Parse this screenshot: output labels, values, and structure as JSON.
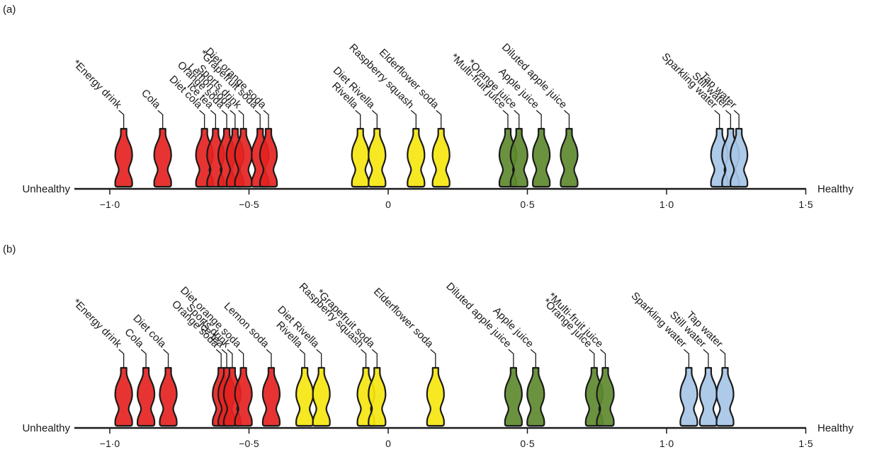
{
  "colors": {
    "red": "#e52321",
    "yellow": "#f5e60f",
    "green": "#5e8a2f",
    "blue": "#a6c5e7",
    "outline": "#1a1a1a"
  },
  "chart_data": [
    {
      "type": "scatter",
      "panel_label": "(a)",
      "left_label": "Unhealthy",
      "right_label": "Healthy",
      "xlim": [
        -1.2,
        1.5
      ],
      "x_ticks": [
        -1.0,
        -0.5,
        0,
        0.5,
        1.0,
        1.5
      ],
      "x_tick_labels": [
        "−1·0",
        "−0·5",
        "0",
        "0·5",
        "1·0",
        "1·5"
      ],
      "points": [
        {
          "label": "*Energy drink",
          "x": -0.95,
          "color": "red"
        },
        {
          "label": "Cola",
          "x": -0.81,
          "color": "red"
        },
        {
          "label": "Diet cola",
          "x": -0.66,
          "color": "red"
        },
        {
          "label": "Ice tea",
          "x": -0.62,
          "color": "red"
        },
        {
          "label": "Orange soda",
          "x": -0.58,
          "color": "red"
        },
        {
          "label": "Lemon soda",
          "x": -0.55,
          "color": "red"
        },
        {
          "label": "Sports drink",
          "x": -0.52,
          "color": "red"
        },
        {
          "label": "*Grapefruit soda",
          "x": -0.46,
          "color": "red"
        },
        {
          "label": "Diet orange soda",
          "x": -0.43,
          "color": "red"
        },
        {
          "label": "Rivella",
          "x": -0.1,
          "color": "yellow"
        },
        {
          "label": "Diet Rivella",
          "x": -0.04,
          "color": "yellow"
        },
        {
          "label": "Raspberry squash",
          "x": 0.1,
          "color": "yellow"
        },
        {
          "label": "Elderflower soda",
          "x": 0.19,
          "color": "yellow"
        },
        {
          "label": "*Multi-fruit juice",
          "x": 0.43,
          "color": "green"
        },
        {
          "label": "*Orange juice",
          "x": 0.47,
          "color": "green"
        },
        {
          "label": "Apple juice",
          "x": 0.55,
          "color": "green"
        },
        {
          "label": "Diluted apple juice",
          "x": 0.65,
          "color": "green"
        },
        {
          "label": "Sparkling water",
          "x": 1.19,
          "color": "blue"
        },
        {
          "label": "Still water",
          "x": 1.23,
          "color": "blue"
        },
        {
          "label": "Tap water",
          "x": 1.26,
          "color": "blue"
        }
      ]
    },
    {
      "type": "scatter",
      "panel_label": "(b)",
      "left_label": "Unhealthy",
      "right_label": "Healthy",
      "xlim": [
        -1.2,
        1.5
      ],
      "x_ticks": [
        -1.0,
        -0.5,
        0,
        0.5,
        1.0,
        1.5
      ],
      "x_tick_labels": [
        "−1·0",
        "−0·5",
        "0",
        "0·5",
        "1·0",
        "1·5"
      ],
      "points": [
        {
          "label": "*Energy drink",
          "x": -0.95,
          "color": "red"
        },
        {
          "label": "Cola",
          "x": -0.87,
          "color": "red"
        },
        {
          "label": "Diet cola",
          "x": -0.79,
          "color": "red"
        },
        {
          "label": "Orange soda",
          "x": -0.6,
          "color": "red"
        },
        {
          "label": "Ice tea",
          "x": -0.58,
          "color": "red"
        },
        {
          "label": "Sports drink",
          "x": -0.56,
          "color": "red"
        },
        {
          "label": "Diet orange soda",
          "x": -0.52,
          "color": "red"
        },
        {
          "label": "Lemon soda",
          "x": -0.42,
          "color": "red"
        },
        {
          "label": "Rivella",
          "x": -0.3,
          "color": "yellow"
        },
        {
          "label": "Diet Rivella",
          "x": -0.24,
          "color": "yellow"
        },
        {
          "label": "Raspberry squash",
          "x": -0.08,
          "color": "yellow"
        },
        {
          "label": "*Grapefruit soda",
          "x": -0.04,
          "color": "yellow"
        },
        {
          "label": "Elderflower soda",
          "x": 0.17,
          "color": "yellow"
        },
        {
          "label": "Diluted apple juice",
          "x": 0.45,
          "color": "green"
        },
        {
          "label": "Apple juice",
          "x": 0.53,
          "color": "green"
        },
        {
          "label": "*Orange juice",
          "x": 0.74,
          "color": "green"
        },
        {
          "label": "*Multi-fruit juice",
          "x": 0.78,
          "color": "green"
        },
        {
          "label": "Sparkling water",
          "x": 1.08,
          "color": "blue"
        },
        {
          "label": "Still water",
          "x": 1.15,
          "color": "blue"
        },
        {
          "label": "Tap water",
          "x": 1.21,
          "color": "blue"
        }
      ]
    }
  ]
}
